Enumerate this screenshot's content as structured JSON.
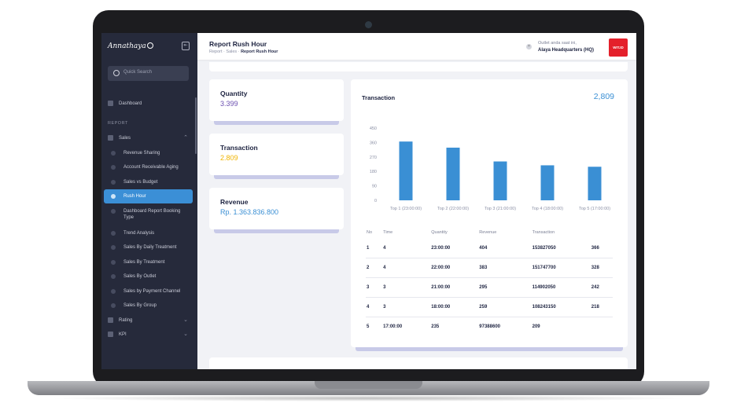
{
  "app": {
    "logo": "Annathaya"
  },
  "search": {
    "placeholder": "Quick Search"
  },
  "sidebar": {
    "dashboard": "Dashboard",
    "section": "REPORT",
    "sales": "Sales",
    "sub_items": [
      "Revenue Sharing",
      "Account Receivable Aging",
      "Sales vs Budget",
      "Rush Hour",
      "Dashboard Report Booking Type",
      "Trend Analysis",
      "Sales By Daily Treatment",
      "Sales By Treatment",
      "Sales By Outlet",
      "Sales by Payment Channel",
      "Sales By Group"
    ],
    "active_item": "Rush Hour",
    "rating": "Rating",
    "kpi": "KPI"
  },
  "header": {
    "title": "Report Rush Hour",
    "breadcrumb": [
      "Report",
      "Sales",
      "Report Rush Hour"
    ],
    "outlet_label": "Outlet anda saat ini,",
    "outlet_name": "Alaya Headquarters (HQ)",
    "brand": "WIT.ID"
  },
  "stats": [
    {
      "title": "Quantity",
      "value": "3.399",
      "color": "#6b4fb0"
    },
    {
      "title": "Transaction",
      "value": "2.809",
      "color": "#f0b400"
    },
    {
      "title": "Revenue",
      "value": "Rp. 1.363.836.800",
      "color": "#3a8fd4"
    }
  ],
  "transaction_panel": {
    "title": "Transaction",
    "total": "2,809"
  },
  "chart_data": {
    "type": "bar",
    "categories": [
      "Top 1 (23:00:00)",
      "Top 2 (22:00:00)",
      "Top 3 (21:00:00)",
      "Top 4 (18:00:00)",
      "Top 5 (17:00:00)"
    ],
    "values": [
      366,
      328,
      242,
      218,
      209
    ],
    "y_ticks": [
      "450",
      "360",
      "270",
      "180",
      "90",
      "0"
    ],
    "ylim": [
      0,
      450
    ],
    "bar_color": "#3a8fd4",
    "grid": false
  },
  "table": {
    "headers": [
      "No",
      "Time",
      "Quantity",
      "Revenue",
      "Transaction",
      ""
    ],
    "rows": [
      [
        "1",
        "4",
        "23:00:00",
        "404",
        "153827050",
        "366"
      ],
      [
        "2",
        "4",
        "22:00:00",
        "383",
        "151747700",
        "328"
      ],
      [
        "3",
        "3",
        "21:00:00",
        "295",
        "114902050",
        "242"
      ],
      [
        "4",
        "3",
        "18:00:00",
        "259",
        "108243150",
        "218"
      ],
      [
        "5",
        "17:00:00",
        "235",
        "97388600",
        "209",
        ""
      ]
    ]
  }
}
